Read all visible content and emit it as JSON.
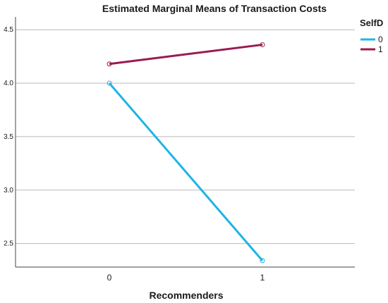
{
  "chart_data": {
    "type": "line",
    "title": "Estimated Marginal Means of Transaction Costs",
    "xlabel": "Recommenders",
    "ylabel": "",
    "categories": [
      "0",
      "1"
    ],
    "ylim": [
      2.28,
      4.62
    ],
    "yticks": [
      2.5,
      3.0,
      3.5,
      4.0,
      4.5
    ],
    "ytick_labels": [
      "2.5",
      "3.0",
      "3.5",
      "4.0",
      "4.5"
    ],
    "grid": "horizontal",
    "legend": {
      "title": "SelfD",
      "placement": "top-right"
    },
    "series": [
      {
        "name": "0",
        "values": [
          4.0,
          2.34
        ],
        "color": "#1EB4E6"
      },
      {
        "name": "1",
        "values": [
          4.18,
          4.36
        ],
        "color": "#9B1B4F"
      }
    ]
  }
}
